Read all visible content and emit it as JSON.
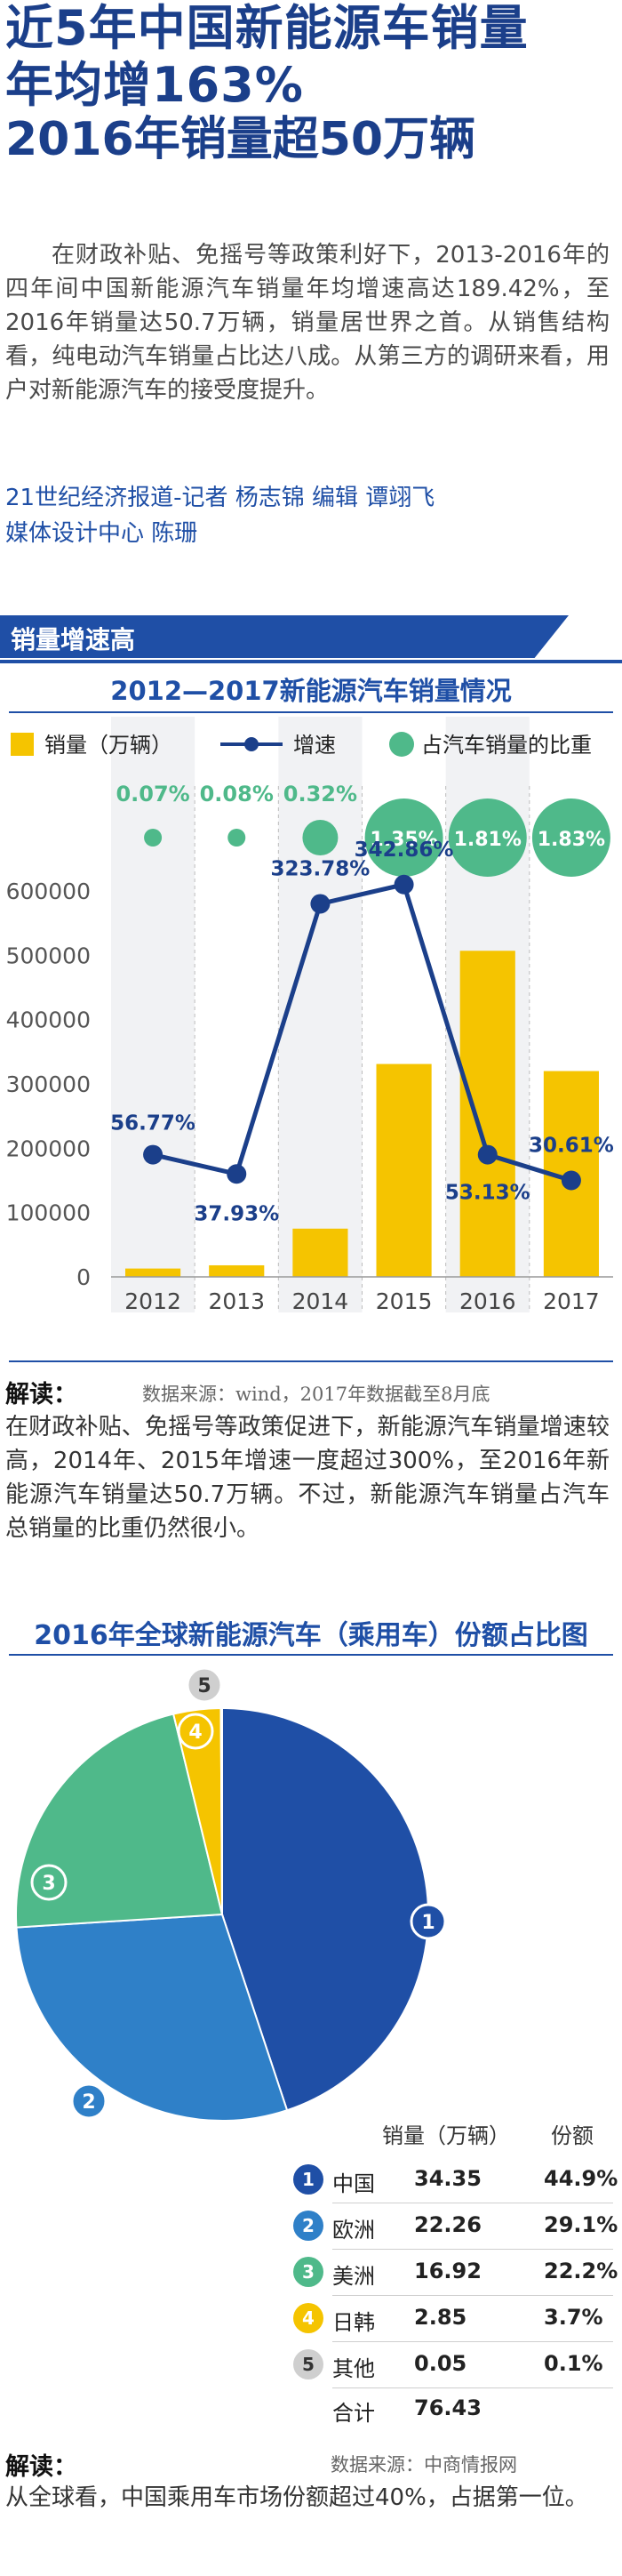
{
  "headline": {
    "line1": "近5年中国新能源车销量",
    "line2": "年均增163%",
    "line3": "2016年销量超50万辆"
  },
  "intro": "在财政补贴、免摇号等政策利好下，2013-2016年的四年间中国新能源汽车销量年均增速高达189.42%，至2016年销量达50.7万辆，销量居世界之首。从销售结构看，纯电动汽车销量占比达八成。从第三方的调研来看，用户对新能源汽车的接受度提升。",
  "byline": {
    "line1": "21世纪经济报道-记者 杨志锦  编辑 谭翊飞",
    "line2": "媒体设计中心 陈珊"
  },
  "section_label": "销量增速高",
  "chart1_title": "2012—2017新能源汽车销量情况",
  "reading1": {
    "head": "解读：",
    "source": "数据来源：wind，2017年数据截至8月底",
    "text": "在财政补贴、免摇号等政策促进下，新能源汽车销量增速较高，2014年、2015年增速一度超过300%，至2016年新能源汽车销量达50.7万辆。不过，新能源汽车销量占汽车总销量的比重仍然很小。"
  },
  "pie_title": "2016年全球新能源汽车（乘用车）份额占比图",
  "table": {
    "col_sales": "销量（万辆）",
    "col_share": "份额",
    "total_label": "合计",
    "total_value": "76.43"
  },
  "reading2": {
    "head": "解读：",
    "source": "数据来源：中商情报网",
    "text": "从全球看，中国乘用车市场份额超过40%，占据第一位。"
  },
  "colors": {
    "brand_blue": "#1f4fa6",
    "bar_yellow": "#f5c400",
    "line_navy": "#1b3f8a",
    "circle_green": "#4fb98a",
    "pie_china": "#1f4fa6",
    "pie_europe": "#2f80c8",
    "pie_america": "#4fb98a",
    "pie_japan_korea": "#f5c400",
    "pie_other": "#cfcfcf"
  },
  "chart_data": [
    {
      "type": "bar",
      "title": "2012—2017新能源汽车销量情况",
      "categories": [
        "2012",
        "2013",
        "2014",
        "2015",
        "2016",
        "2017"
      ],
      "ylim": [
        0,
        600000
      ],
      "yticks": [
        0,
        100000,
        200000,
        300000,
        400000,
        500000,
        600000
      ],
      "legend": [
        "销量（万辆）",
        "增速",
        "占汽车销量的比重"
      ],
      "legend_position": "top",
      "series": [
        {
          "name": "销量（万辆）",
          "kind": "bar",
          "values": [
            13000,
            18000,
            75000,
            331000,
            507000,
            320000
          ]
        },
        {
          "name": "增速",
          "kind": "line",
          "values": [
            190000,
            160000,
            580000,
            610000,
            190000,
            150000
          ],
          "labels": [
            "56.77%",
            "37.93%",
            "323.78%",
            "342.86%",
            "53.13%",
            "30.61%"
          ]
        },
        {
          "name": "占汽车销量的比重",
          "kind": "bubble",
          "values": [
            0.07,
            0.08,
            0.32,
            1.35,
            1.81,
            1.83
          ],
          "labels": [
            "0.07%",
            "0.08%",
            "0.32%",
            "1.35%",
            "1.81%",
            "1.83%"
          ]
        }
      ],
      "grid": false
    },
    {
      "type": "pie",
      "title": "2016年全球新能源汽车（乘用车）份额占比图",
      "slices": [
        {
          "index": "1",
          "label": "中国",
          "sales": "34.35",
          "share": "44.9%",
          "value": 44.9
        },
        {
          "index": "2",
          "label": "欧洲",
          "sales": "22.26",
          "share": "29.1%",
          "value": 29.1
        },
        {
          "index": "3",
          "label": "美洲",
          "sales": "16.92",
          "share": "22.2%",
          "value": 22.2
        },
        {
          "index": "4",
          "label": "日韩",
          "sales": "2.85",
          "share": "3.7%",
          "value": 3.7
        },
        {
          "index": "5",
          "label": "其他",
          "sales": "0.05",
          "share": "0.1%",
          "value": 0.1
        }
      ]
    }
  ]
}
